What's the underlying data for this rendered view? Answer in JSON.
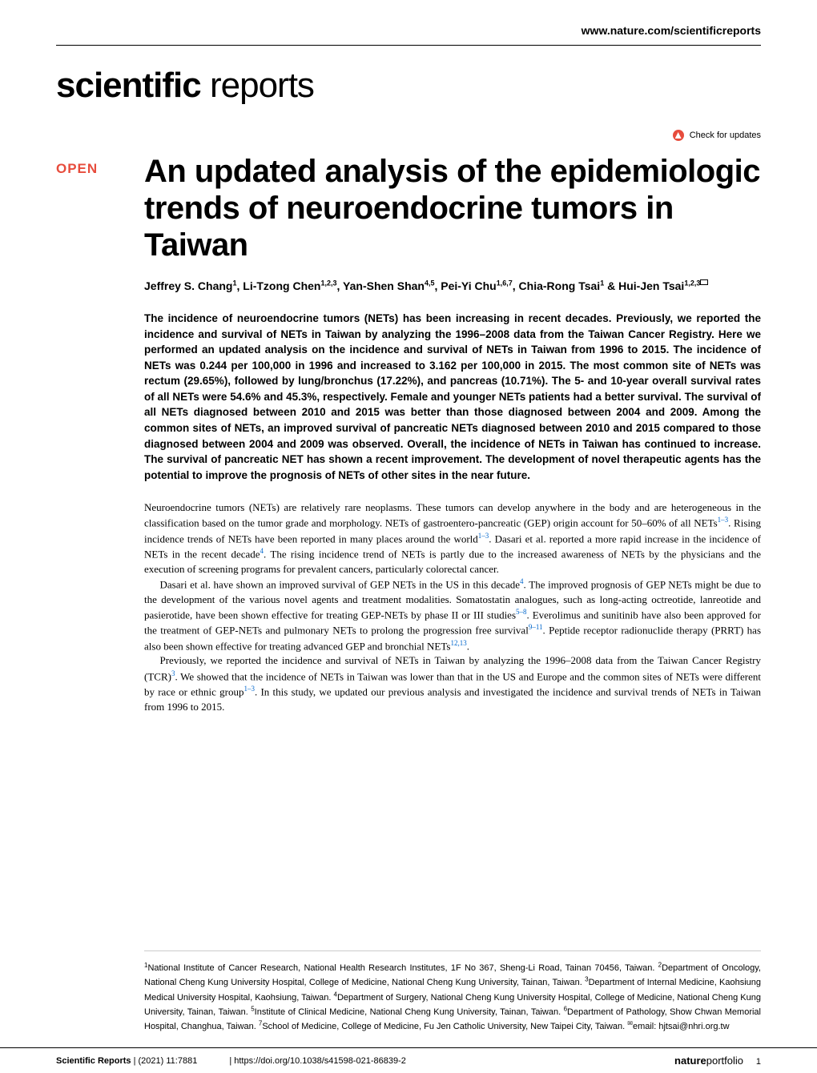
{
  "header": {
    "url": "www.nature.com/scientificreports",
    "journal_name_bold": "scientific",
    "journal_name_light": " reports",
    "check_updates": "Check for updates",
    "open_badge": "OPEN"
  },
  "article": {
    "title": "An updated analysis of the epidemiologic trends of neuroendocrine tumors in Taiwan",
    "authors_html": "Jeffrey S. Chang<sup>1</sup>, Li-Tzong Chen<sup>1,2,3</sup>, Yan-Shen Shan<sup>4,5</sup>, Pei-Yi Chu<sup>1,6,7</sup>, Chia-Rong Tsai<sup>1</sup> & Hui-Jen Tsai<sup>1,2,3</sup>",
    "abstract": "The incidence of neuroendocrine tumors (NETs) has been increasing in recent decades. Previously, we reported the incidence and survival of NETs in Taiwan by analyzing the 1996–2008 data from the Taiwan Cancer Registry. Here we performed an updated analysis on the incidence and survival of NETs in Taiwan from 1996 to 2015. The incidence of NETs was 0.244 per 100,000 in 1996 and increased to 3.162 per 100,000 in 2015. The most common site of NETs was rectum (29.65%), followed by lung/bronchus (17.22%), and pancreas (10.71%). The 5- and 10-year overall survival rates of all NETs were 54.6% and 45.3%, respectively. Female and younger NETs patients had a better survival. The survival of all NETs diagnosed between 2010 and 2015 was better than those diagnosed between 2004 and 2009. Among the common sites of NETs, an improved survival of pancreatic NETs diagnosed between 2010 and 2015 compared to those diagnosed between 2004 and 2009 was observed. Overall, the incidence of NETs in Taiwan has continued to increase. The survival of pancreatic NET has shown a recent improvement. The development of novel therapeutic agents has the potential to improve the prognosis of NETs of other sites in the near future.",
    "body": {
      "p1": "Neuroendocrine tumors (NETs) are relatively rare neoplasms. These tumors can develop anywhere in the body and are heterogeneous in the classification based on the tumor grade and morphology. NETs of gastroentero-pancreatic (GEP) origin account for 50–60% of all NETs",
      "p1_ref1": "1–3",
      "p1_cont": ". Rising incidence trends of NETs have been reported in many places around the world",
      "p1_ref2": "1–3",
      "p1_cont2": ". Dasari et al. reported a more rapid increase in the incidence of NETs in the recent decade",
      "p1_ref3": "4",
      "p1_cont3": ". The rising incidence trend of NETs is partly due to the increased awareness of NETs by the physicians and the execution of screening programs for prevalent cancers, particularly colorectal cancer.",
      "p2": "Dasari et al. have shown an improved survival of GEP NETs in the US in this decade",
      "p2_ref1": "4",
      "p2_cont": ". The improved prognosis of GEP NETs might be due to the development of the various novel agents and treatment modalities. Somatostatin analogues, such as long-acting octreotide, lanreotide and pasierotide, have been shown effective for treating GEP-NETs by phase II or III studies",
      "p2_ref2": "5–8",
      "p2_cont2": ". Everolimus and sunitinib have also been approved for the treatment of GEP-NETs and pulmonary NETs to prolong the progression free survival",
      "p2_ref3": "9–11",
      "p2_cont3": ". Peptide receptor radionuclide therapy (PRRT) has also been shown effective for treating advanced GEP and bronchial NETs",
      "p2_ref4": "12,13",
      "p2_cont4": ".",
      "p3": "Previously, we reported the incidence and survival of NETs in Taiwan by analyzing the 1996–2008 data from the Taiwan Cancer Registry (TCR)",
      "p3_ref1": "3",
      "p3_cont": ". We showed that the incidence of NETs in Taiwan was lower than that in the US and Europe and the common sites of NETs were different by race or ethnic group",
      "p3_ref2": "1–3",
      "p3_cont2": ". In this study, we updated our previous analysis and investigated the incidence and survival trends of NETs in Taiwan from 1996 to 2015."
    },
    "affiliations": "National Institute of Cancer Research, National Health Research Institutes, 1F No 367, Sheng-Li Road, Tainan 70456, Taiwan. <sup>2</sup>Department of Oncology, National Cheng Kung University Hospital, College of Medicine, National Cheng Kung University, Tainan, Taiwan. <sup>3</sup>Department of Internal Medicine, Kaohsiung Medical University Hospital, Kaohsiung, Taiwan. <sup>4</sup>Department of Surgery, National Cheng Kung University Hospital, College of Medicine, National Cheng Kung University, Tainan, Taiwan. <sup>5</sup>Institute of Clinical Medicine, National Cheng Kung University, Tainan, Taiwan. <sup>6</sup>Department of Pathology, Show Chwan Memorial Hospital, Changhua, Taiwan. <sup>7</sup>School of Medicine, College of Medicine, Fu Jen Catholic University, New Taipei City, Taiwan. <sup>✉</sup>email: hjtsai@nhri.org.tw",
    "aff_sup1": "1"
  },
  "footer": {
    "journal": "Scientific Reports",
    "citation": "(2021) 11:7881",
    "doi": "https://doi.org/10.1038/s41598-021-86839-2",
    "publisher_bold": "nature",
    "publisher_light": "portfolio",
    "page": "1"
  },
  "colors": {
    "open_badge": "#e74c3c",
    "ref_link": "#0066cc",
    "text": "#000000",
    "background": "#ffffff"
  }
}
